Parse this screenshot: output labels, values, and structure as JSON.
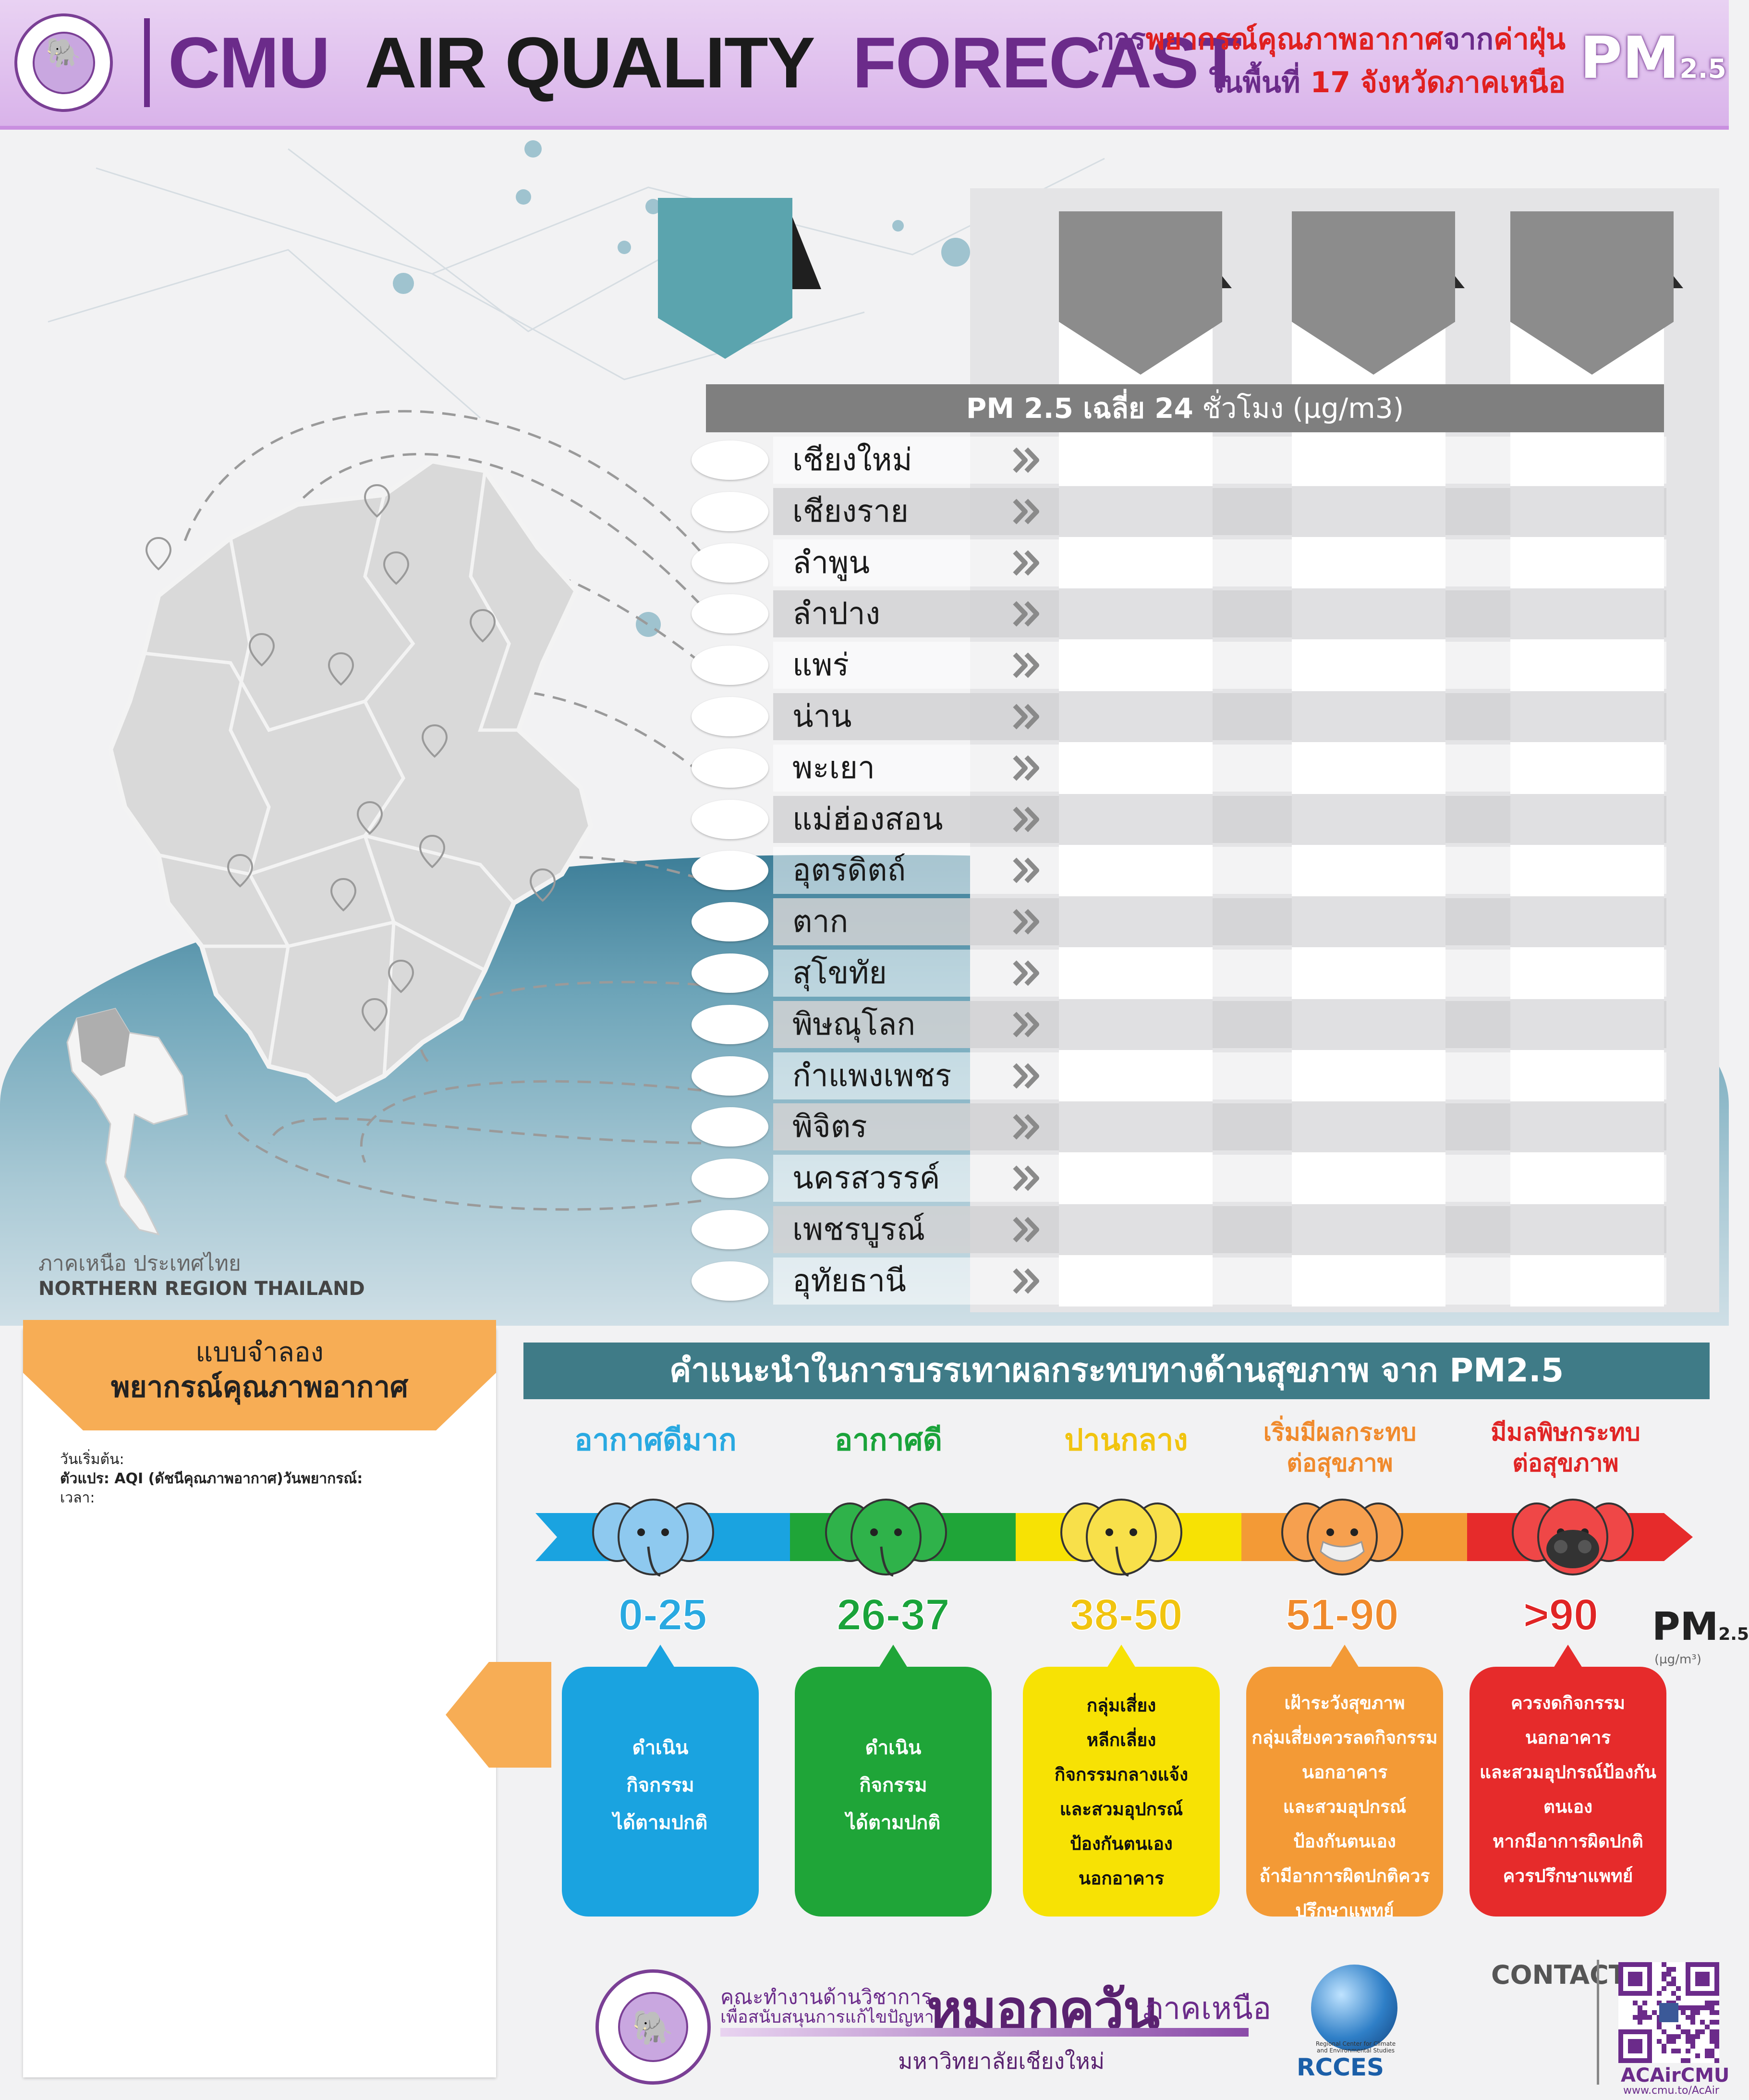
{
  "header": {
    "title_part1": "CMU",
    "title_part2": "AIR QUALITY",
    "title_part3": "FORECAST",
    "subtitle_line1_a": "การ",
    "subtitle_line1_b": "พยากรณ์คุณภาพอากาศ",
    "subtitle_line1_c": "จาก",
    "subtitle_line1_d": "ค่าฝุ่น",
    "subtitle_line2_a": "ในพื้นที่",
    "subtitle_line2_b": "17 จังหวัดภาคเหนือ",
    "pm_label": "PM",
    "pm_sub": "2.5"
  },
  "table": {
    "header_bold": "PM 2.5 เฉลี่ย 24",
    "header_rest": "ชั่วโมง (µg/m3)",
    "provinces": [
      "เชียงใหม่",
      "เชียงราย",
      "ลำพูน",
      "ลำปาง",
      "แพร่",
      "น่าน",
      "พะเยา",
      "แม่ฮ่องสอน",
      "อุตรดิตถ์",
      "ตาก",
      "สุโขทัย",
      "พิษณุโลก",
      "กำแพงเพชร",
      "พิจิตร",
      "นครสวรรค์",
      "เพชรบูรณ์",
      "อุทัยธานี"
    ]
  },
  "map_caption": {
    "thai": "ภาคเหนือ ประเทศไทย",
    "english": "NORTHERN REGION THAILAND"
  },
  "model": {
    "line1": "แบบจำลอง",
    "line2": "พยากรณ์คุณภาพอากาศ",
    "info_start": "วันเริ่มต้น:",
    "info_var": "ตัวแปร: AQI (ดัชนีคุณภาพอากาศ)วันพยากรณ์:",
    "info_time": "เวลา:"
  },
  "health": {
    "title": "คำแนะนำในการบรรเทาผลกระทบทางด้านสุขภาพ จาก  PM2.5",
    "levels": [
      {
        "label": "อากาศดีมาก",
        "range": "0-25",
        "advice": [
          "ดำเนิน",
          "กิจกรรม",
          "ได้ตามปกติ"
        ],
        "color": "#1aa3e0",
        "text_color": "#29a9e1"
      },
      {
        "label": "อากาศดี",
        "range": "26-37",
        "advice": [
          "ดำเนิน",
          "กิจกรรม",
          "ได้ตามปกติ"
        ],
        "color": "#1fa538",
        "text_color": "#1aa33a"
      },
      {
        "label": "ปานกลาง",
        "range": "38-50",
        "advice": [
          "กลุ่มเสี่ยง",
          "หลีกเลี่ยง",
          "กิจกรรมกลางแจ้ง",
          "และสวมอุปกรณ์",
          "ป้องกันตนเอง",
          "นอกอาคาร"
        ],
        "color": "#f7e204",
        "text_color": "#f1c40f"
      },
      {
        "label_line1": "เริ่มมีผลกระทบ",
        "label_line2": "ต่อสุขภาพ",
        "range": "51-90",
        "advice": [
          "เฝ้าระวังสุขภาพ",
          "กลุ่มเสี่ยงควรลดกิจกรรม",
          "นอกอาคาร",
          "และสวมอุปกรณ์",
          "ป้องกันตนเอง",
          "ถ้ามีอาการผิดปกติควร",
          "ปรึกษาแพทย์"
        ],
        "color": "#f39a36",
        "text_color": "#f08a2c"
      },
      {
        "label_line1": "มีมลพิษกระทบ",
        "label_line2": "ต่อสุขภาพ",
        "range": ">90",
        "advice": [
          "ควรงดกิจกรรม",
          "นอกอาคาร",
          "และสวมอุปกรณ์ป้องกัน",
          "ตนเอง",
          "หากมีอาการผิดปกติ",
          "ควรปรึกษาแพทย์"
        ],
        "color": "#e62b2b",
        "text_color": "#e02525"
      }
    ],
    "pm_label": "PM",
    "pm_sub": "2.5",
    "pm_unit": "(µg/m³)"
  },
  "footer": {
    "line1": "คณะทำงานด้านวิชาการ",
    "line2": "เพื่อสนับสนุนการแก้ไขปัญหา",
    "big": "หมอกควัน",
    "big2": "ภาคเหนือ",
    "university": "มหาวิทยาลัยเชียงใหม่",
    "rcces": "RCCES",
    "rcces_small": "Regional Center for Climate and Environmental Studies",
    "contact": "CONTACT",
    "acair": "ACAirCMU",
    "url": "www.cmu.to/AcAir"
  }
}
